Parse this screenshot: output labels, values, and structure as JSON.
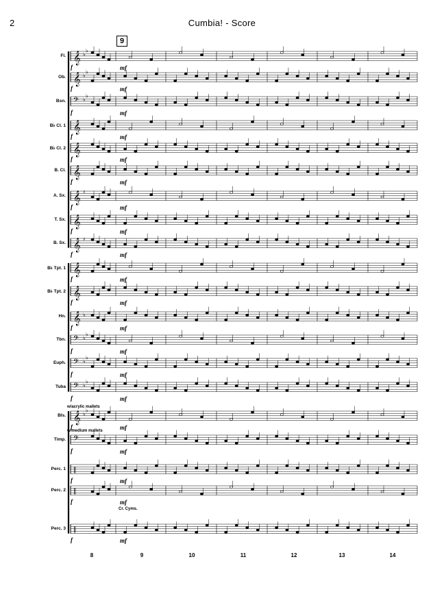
{
  "page": {
    "number": "2",
    "title": "Cumbia! - Score",
    "rehearsal_mark": "9"
  },
  "instruments": [
    {
      "name": "Fl.",
      "clef": "treble",
      "key": "Bb"
    },
    {
      "name": "Ob.",
      "clef": "treble",
      "key": "Bb"
    },
    {
      "name": "Bsn.",
      "clef": "bass",
      "key": "Bb"
    },
    {
      "name": "B♭ Cl. 1",
      "clef": "treble",
      "key": "C"
    },
    {
      "name": "B♭ Cl. 2",
      "clef": "treble",
      "key": "C"
    },
    {
      "name": "B. Cl.",
      "clef": "treble",
      "key": "C"
    },
    {
      "name": "A. Sx.",
      "clef": "treble",
      "key": "G"
    },
    {
      "name": "T. Sx.",
      "clef": "treble",
      "key": "C"
    },
    {
      "name": "B. Sx.",
      "clef": "treble",
      "key": "G"
    },
    {
      "name": "B♭ Tpt. 1",
      "clef": "treble",
      "key": "C"
    },
    {
      "name": "B♭ Tpt. 2",
      "clef": "treble",
      "key": "C"
    },
    {
      "name": "Hn.",
      "clef": "treble",
      "key": "F"
    },
    {
      "name": "Tbn.",
      "clef": "bass",
      "key": "Bb"
    },
    {
      "name": "Euph.",
      "clef": "bass",
      "key": "Bb"
    },
    {
      "name": "Tuba",
      "clef": "bass",
      "key": "Bb"
    },
    {
      "name": "Bls.",
      "clef": "treble",
      "key": "Bb"
    },
    {
      "name": "Timp.",
      "clef": "bass",
      "key": "C"
    },
    {
      "name": "Perc. 1",
      "clef": "perc",
      "key": "C"
    },
    {
      "name": "Perc. 2",
      "clef": "perc",
      "key": "C"
    },
    {
      "name": "Perc. 3",
      "clef": "perc",
      "key": "C"
    }
  ],
  "measure_numbers": [
    "8",
    "9",
    "10",
    "11",
    "12",
    "13",
    "14"
  ],
  "dynamics": {
    "forte": "f",
    "mezzo_forte": "mf"
  },
  "text_marks": {
    "bells": "w/acrylic mallets",
    "timpani": "w/medium mallets",
    "perc2": "Cr. Cyms."
  }
}
